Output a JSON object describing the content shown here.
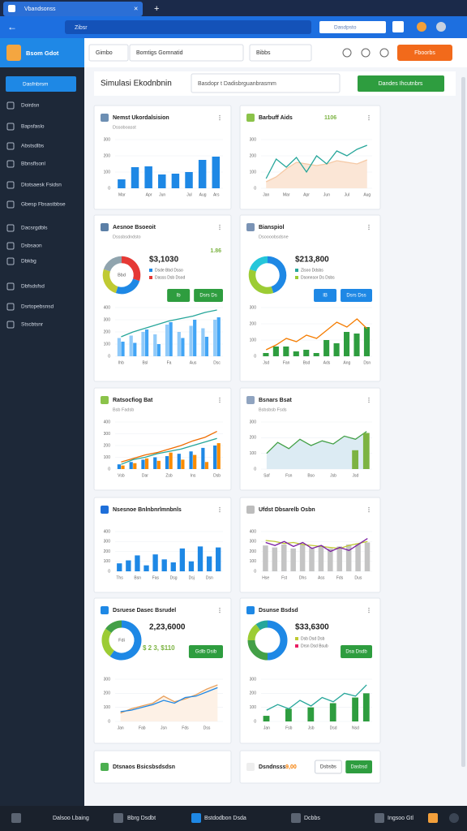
{
  "browser": {
    "tab_title": "Vbandsonss",
    "address": "Zibsr",
    "search": "Dasdpsto"
  },
  "app": {
    "brand": "Bsom Gdot",
    "header_fields": [
      "Gimbo",
      "Bomtigs Gomnatid",
      "Bibbs"
    ],
    "header_button": "Fboorbs"
  },
  "sidebar": {
    "active": "Dasfnbrsm",
    "items": [
      "Doirdsn",
      "Bapsfaslo",
      "Abstsdlbs",
      "Bbnsflsonl",
      "Dtotsaesk Fsidsn",
      "Gbesp Fbsastbbse",
      "Dacsrgdbls",
      "Dsbsaon",
      "Dbkbg",
      "Dbfsdsfsd",
      "Dsrtopebsnsd",
      "Stscbtsnr"
    ]
  },
  "toolbar": {
    "title": "Simulasi Ekodnbnin",
    "search": "Basdopr t Dadisbrguanbrasmm",
    "button": "Dandes Ihcutnbrs"
  },
  "cards": [
    {
      "title": "Nemst Ukordalsision",
      "subtitle": "Dssoboasst",
      "chart": {
        "ylim": [
          0,
          300
        ],
        "yticks": [
          0,
          100,
          200,
          300
        ],
        "categories": [
          "Mar",
          null,
          "Apr",
          "Jun",
          null,
          "Jul",
          "Aug",
          "Ars"
        ],
        "series": [
          {
            "kind": "bar",
            "color": "#1e88e5",
            "values": [
              55,
              130,
              135,
              85,
              90,
              100,
              175,
              195
            ]
          }
        ]
      }
    },
    {
      "title": "Barbuff Aids",
      "badge": "1106",
      "badge_color": "#7cb342",
      "chart": {
        "ylim": [
          0,
          300
        ],
        "yticks": [
          0,
          100,
          200,
          300
        ],
        "categories": [
          "Jan",
          null,
          "Mar",
          null,
          "Apr",
          null,
          "Jun",
          null,
          "Jul",
          null,
          "Aug"
        ],
        "series": [
          {
            "kind": "area",
            "color": "#f5c9a5",
            "fill": "#fbe6d6",
            "values": [
              40,
              70,
              120,
              160,
              150,
              140,
              150,
              170,
              160,
              150,
              175
            ]
          },
          {
            "kind": "line",
            "color": "#26a69a",
            "values": [
              60,
              180,
              130,
              190,
              100,
              200,
              150,
              230,
              200,
              240,
              265
            ]
          }
        ]
      }
    },
    {
      "title": "Aesnoe Bsoeoit",
      "subtitle": "Dsssbsdndsto",
      "badge": "1.86",
      "badge_color": "#7cb342",
      "donut": {
        "values": [
          30,
          25,
          25,
          20
        ],
        "colors": [
          "#e53935",
          "#1e88e5",
          "#c0ca33",
          "#90a4ae"
        ],
        "label": "Bbd"
      },
      "amount": "$3,1030",
      "legend": [
        {
          "label": "Dsde Bbd Dsso",
          "color": "#1e88e5"
        },
        {
          "label": "Dasss Dsb Dsod",
          "color": "#e53935"
        }
      ],
      "buttons": [
        {
          "label": "Ib",
          "fill": "#2e9d3f"
        },
        {
          "label": "Dsrs Ds",
          "fill": "#2e9d3f"
        }
      ],
      "chart": {
        "ylim": [
          0,
          400
        ],
        "yticks": [
          0,
          100,
          200,
          300,
          400
        ],
        "categories": [
          "Ihb",
          null,
          "Bsl",
          null,
          "Fa",
          null,
          "Aus",
          null,
          "Dsc"
        ],
        "series": [
          {
            "kind": "bar",
            "color": "#90caf9",
            "values": [
              150,
              170,
              200,
              180,
              260,
              200,
              250,
              230,
              300
            ]
          },
          {
            "kind": "bar",
            "color": "#42a5f5",
            "values": [
              120,
              110,
              220,
              100,
              280,
              150,
              300,
              160,
              320
            ]
          },
          {
            "kind": "line",
            "color": "#26a69a",
            "values": [
              160,
              200,
              230,
              260,
              290,
              310,
              330,
              360,
              380
            ]
          }
        ]
      }
    },
    {
      "title": "Bianspiol",
      "subtitle": "Dsoooobsdsne",
      "donut": {
        "values": [
          45,
          35,
          20
        ],
        "colors": [
          "#1e88e5",
          "#9ccc34",
          "#26c6da"
        ]
      },
      "amount": "$213,800",
      "legend": [
        {
          "label": "Zisoo Ddsbs",
          "color": "#26a69a"
        },
        {
          "label": "Dsonnsor Ds Dsbs",
          "color": "#9ccc34"
        }
      ],
      "buttons": [
        {
          "label": "IB",
          "fill": "#1e88e5"
        },
        {
          "label": "Dsrs Dss",
          "fill": "#1e88e5"
        }
      ],
      "chart": {
        "ylim": [
          0,
          300
        ],
        "yticks": [
          0,
          100,
          200,
          300
        ],
        "categories": [
          "Jsd",
          null,
          "Fan",
          null,
          "Bsd",
          null,
          "Ads",
          null,
          "Ang",
          null,
          "Dsn"
        ],
        "series": [
          {
            "kind": "bar",
            "color": "#2e9d3f",
            "values": [
              20,
              60,
              60,
              30,
              40,
              20,
              100,
              80,
              150,
              140,
              180
            ]
          },
          {
            "kind": "line",
            "color": "#f57c00",
            "values": [
              40,
              70,
              110,
              90,
              130,
              110,
              160,
              210,
              180,
              230,
              170
            ]
          }
        ]
      }
    },
    {
      "title": "Ratsocfiog Bat",
      "subtitle": "Bsb Fadsb",
      "chart": {
        "ylim": [
          0,
          400
        ],
        "yticks": [
          0,
          100,
          200,
          300,
          400
        ],
        "categories": [
          "Vsb",
          null,
          "Dar",
          null,
          "Zsb",
          null,
          "Ins",
          null,
          "Dsb"
        ],
        "series": [
          {
            "kind": "bar",
            "color": "#1e88e5",
            "values": [
              40,
              60,
              80,
              100,
              110,
              130,
              150,
              180,
              200
            ]
          },
          {
            "kind": "bar",
            "color": "#fb8c00",
            "values": [
              30,
              50,
              90,
              70,
              140,
              80,
              120,
              60,
              220
            ]
          },
          {
            "kind": "line",
            "color": "#ef6c00",
            "values": [
              60,
              90,
              120,
              140,
              170,
              200,
              240,
              270,
              320
            ]
          },
          {
            "kind": "line",
            "color": "#26a69a",
            "values": [
              40,
              80,
              100,
              130,
              150,
              170,
              200,
              230,
              260
            ]
          }
        ]
      }
    },
    {
      "title": "Bsnars Bsat",
      "subtitle": "Bsbsbsb Fsds",
      "chart": {
        "ylim": [
          0,
          300
        ],
        "yticks": [
          0,
          100,
          200,
          300
        ],
        "categories": [
          "Saf",
          null,
          "Fsn",
          null,
          "Bso",
          null,
          "Jsb",
          null,
          "Jsd",
          null
        ],
        "series": [
          {
            "kind": "area",
            "color": "#43a047",
            "fill": "#dcebf3",
            "values": [
              100,
              170,
              130,
              190,
              150,
              180,
              160,
              210,
              190,
              240
            ]
          },
          {
            "kind": "bar",
            "color": "#7cb342",
            "values": [
              null,
              null,
              null,
              null,
              null,
              null,
              null,
              null,
              120,
              230
            ]
          }
        ]
      }
    },
    {
      "title": "Nsesnoe Bnlnbnrlmnbnls",
      "chart": {
        "ylim": [
          0,
          400
        ],
        "yticks": [
          0,
          100,
          200,
          300,
          400
        ],
        "categories": [
          "Ths",
          null,
          "Bsn",
          null,
          "Fas",
          null,
          "Dsg",
          null,
          "Dsj",
          null,
          "Dsn",
          null
        ],
        "series": [
          {
            "kind": "bar",
            "color": "#1e88e5",
            "values": [
              80,
              110,
              160,
              60,
              170,
              120,
              90,
              230,
              100,
              250,
              150,
              240
            ]
          }
        ]
      }
    },
    {
      "title": "Ufdst Dbsarelb Osbn",
      "chart": {
        "ylim": [
          0,
          400
        ],
        "yticks": [
          0,
          100,
          200,
          300,
          400
        ],
        "categories": [
          "Hse",
          null,
          "Fst",
          null,
          "Dhs",
          null,
          "Ass",
          null,
          "Fds",
          null,
          "Dus",
          null
        ],
        "series": [
          {
            "kind": "bar",
            "color": "#c4c4c4",
            "values": [
              260,
              240,
              270,
              230,
              280,
              240,
              260,
              230,
              250,
              270,
              280,
              290
            ]
          },
          {
            "kind": "line",
            "color": "#c0ca33",
            "values": [
              310,
              300,
              280,
              290,
              270,
              260,
              250,
              240,
              230,
              260,
              280,
              300
            ]
          },
          {
            "kind": "line",
            "color": "#7b1fa2",
            "values": [
              290,
              260,
              300,
              250,
              290,
              230,
              260,
              200,
              240,
              210,
              270,
              330
            ]
          }
        ]
      }
    },
    {
      "title": "Dsruese Dasec Bsrudel",
      "donut": {
        "values": [
          60,
          25,
          15
        ],
        "colors": [
          "#1e88e5",
          "#9ccc34",
          "#43a047"
        ],
        "label": "Fdi"
      },
      "amount": "2,23,6000",
      "sub": "$ 2 3, $110",
      "buttons": [
        {
          "label": "Gdlb Dsib",
          "fill": "#2e9d3f"
        }
      ],
      "chart": {
        "ylim": [
          0,
          300
        ],
        "yticks": [
          0,
          100,
          200,
          300
        ],
        "categories": [
          "Jan",
          null,
          "Fab",
          null,
          "Jsn",
          null,
          "Fds",
          null,
          "Dss",
          null
        ],
        "series": [
          {
            "kind": "area",
            "color": "#e9a05b",
            "fill": "#fdf1e6",
            "values": [
              60,
              90,
              110,
              130,
              180,
              140,
              160,
              190,
              230,
              260
            ]
          },
          {
            "kind": "line",
            "color": "#1e88e5",
            "values": [
              70,
              80,
              100,
              120,
              150,
              130,
              170,
              180,
              210,
              240
            ]
          }
        ]
      }
    },
    {
      "title": "Dsunse Bsdsd",
      "donut": {
        "values": [
          50,
          25,
          15,
          10
        ],
        "colors": [
          "#1e88e5",
          "#43a047",
          "#9ccc34",
          "#26a69a"
        ]
      },
      "amount": "$33,6300",
      "legend": [
        {
          "label": "Dsb Dsd Dsb",
          "color": "#c0ca33"
        },
        {
          "label": "Drsn Dsd Bsub",
          "color": "#e91e63"
        }
      ],
      "buttons": [
        {
          "label": "Dsa Dsdb",
          "fill": "#2e9d3f"
        }
      ],
      "chart": {
        "ylim": [
          0,
          300
        ],
        "yticks": [
          0,
          100,
          200,
          300
        ],
        "categories": [
          "Jan",
          null,
          "Fsb",
          null,
          "Jsb",
          null,
          "Dsd",
          null,
          "Nsd",
          null
        ],
        "series": [
          {
            "kind": "bar",
            "color": "#2e9d3f",
            "values": [
              40,
              null,
              90,
              null,
              100,
              null,
              130,
              null,
              170,
              200
            ]
          },
          {
            "kind": "line",
            "color": "#26a69a",
            "values": [
              80,
              120,
              90,
              150,
              110,
              170,
              140,
              200,
              180,
              260
            ]
          }
        ]
      }
    },
    {
      "title": "Dtsnaos Bsicsbsdsdsn"
    },
    {
      "title": "Dsndnsss",
      "badge": "9,00",
      "badge_color": "#f57c00",
      "buttons": [
        {
          "label": "Dsbsbs",
          "fill": null
        },
        {
          "label": "Dasbsd",
          "fill": "#2e9d3f"
        }
      ]
    }
  ],
  "taskbar": {
    "items": [
      "Dalsoo Lbaing",
      "Bbrg Dsdbt",
      "Bstdodbon Dsda",
      "Dcbbs",
      "Ingsoo Gtl"
    ]
  }
}
